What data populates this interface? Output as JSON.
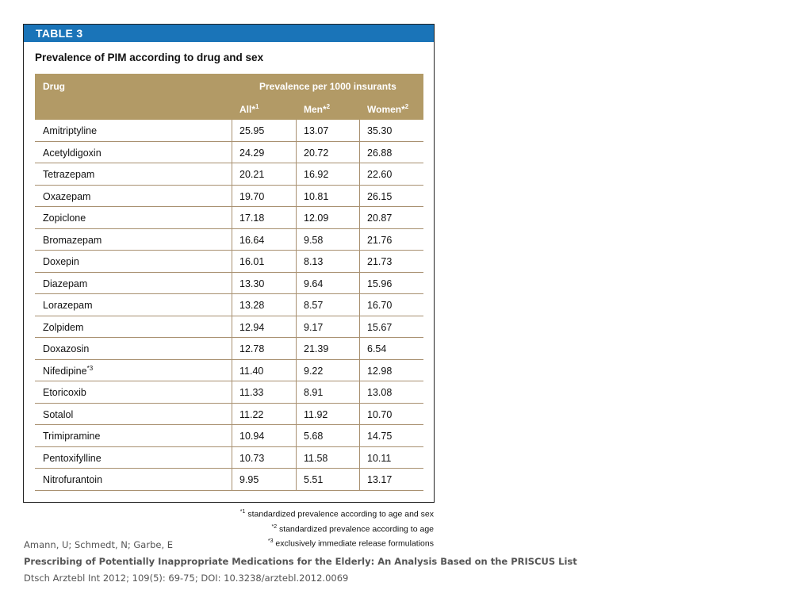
{
  "table": {
    "label": "TABLE 3",
    "title": "Prevalence of PIM according to drug and sex",
    "header": {
      "drug": "Drug",
      "group": "Prevalence per 1000 insurants",
      "all": "All*",
      "all_sup": "1",
      "men": "Men*",
      "men_sup": "2",
      "women": "Women*",
      "women_sup": "2"
    },
    "rows": [
      {
        "drug": "Amitriptyline",
        "all": "25.95",
        "men": "13.07",
        "women": "35.30"
      },
      {
        "drug": "Acetyldigoxin",
        "all": "24.29",
        "men": "20.72",
        "women": "26.88"
      },
      {
        "drug": "Tetrazepam",
        "all": "20.21",
        "men": "16.92",
        "women": "22.60"
      },
      {
        "drug": "Oxazepam",
        "all": "19.70",
        "men": "10.81",
        "women": "26.15"
      },
      {
        "drug": "Zopiclone",
        "all": "17.18",
        "men": "12.09",
        "women": "20.87"
      },
      {
        "drug": "Bromazepam",
        "all": "16.64",
        "men": "9.58",
        "women": "21.76"
      },
      {
        "drug": "Doxepin",
        "all": "16.01",
        "men": "8.13",
        "women": "21.73"
      },
      {
        "drug": "Diazepam",
        "all": "13.30",
        "men": "9.64",
        "women": "15.96"
      },
      {
        "drug": "Lorazepam",
        "all": "13.28",
        "men": "8.57",
        "women": "16.70"
      },
      {
        "drug": "Zolpidem",
        "all": "12.94",
        "men": "9.17",
        "women": "15.67"
      },
      {
        "drug": "Doxazosin",
        "all": "12.78",
        "men": "21.39",
        "women": "6.54"
      },
      {
        "drug": "Nifedipine",
        "drug_sup": "*3",
        "all": "11.40",
        "men": "9.22",
        "women": "12.98"
      },
      {
        "drug": "Etoricoxib",
        "all": "11.33",
        "men": "8.91",
        "women": "13.08"
      },
      {
        "drug": "Sotalol",
        "all": "11.22",
        "men": "11.92",
        "women": "10.70"
      },
      {
        "drug": "Trimipramine",
        "all": "10.94",
        "men": "5.68",
        "women": "14.75"
      },
      {
        "drug": "Pentoxifylline",
        "all": "10.73",
        "men": "11.58",
        "women": "10.11"
      },
      {
        "drug": "Nitrofurantoin",
        "all": "9.95",
        "men": "5.51",
        "women": "13.17"
      }
    ],
    "footnotes": [
      {
        "mark": "*1",
        "text": "standardized prevalence according to age and sex"
      },
      {
        "mark": "*2",
        "text": "standardized prevalence according to age"
      },
      {
        "mark": "*3",
        "text": "exclusively immediate release formulations"
      }
    ]
  },
  "citation": {
    "authors": "Amann, U; Schmedt, N; Garbe, E",
    "title": "Prescribing of Potentially Inappropriate Medications for the Elderly: An Analysis Based on the PRISCUS List",
    "source": "Dtsch Arztebl Int 2012; 109(5): 69-75; DOI: 10.3238/arztebl.2012.0069"
  }
}
